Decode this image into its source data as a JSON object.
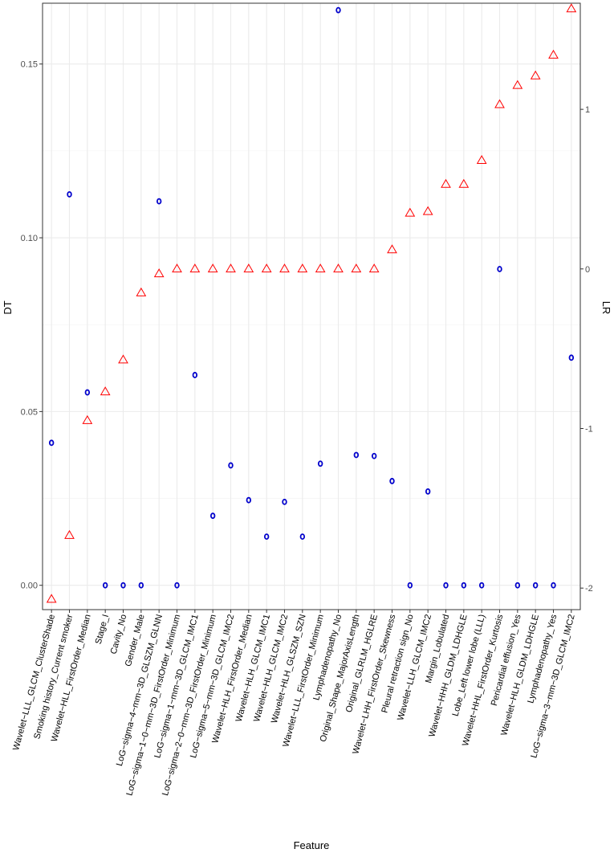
{
  "chart_data": {
    "type": "scatter",
    "xlabel": "Feature",
    "ylabel_left": "DT",
    "ylabel_right": "LR",
    "ylim_left": [
      -0.007,
      0.1675
    ],
    "ylim_right": [
      -2.135,
      1.665
    ],
    "left_ticks": [
      {
        "value": 0.0,
        "label": "0.00"
      },
      {
        "value": 0.05,
        "label": "0.05"
      },
      {
        "value": 0.1,
        "label": "0.10"
      },
      {
        "value": 0.15,
        "label": "0.15"
      }
    ],
    "right_ticks": [
      {
        "value": -2,
        "label": "-2"
      },
      {
        "value": -1,
        "label": "-1"
      },
      {
        "value": 0,
        "label": "0"
      },
      {
        "value": 1,
        "label": "1"
      }
    ],
    "grid": true,
    "categories": [
      "Wavelet−LLL_GLCM_ClusterShade",
      "Smoking history_Current smoker",
      "Wavelet−HLL_FirstOrder_Median",
      "Stage_I",
      "Cavity_No",
      "Gender_Male",
      "LoG−sigma−4−mm−3D_GLSZM_GLNN",
      "LoG−sigma−1−0−mm−3D_FirstOrder_Minimum",
      "LoG−sigma−1−mm−3D_GLCM_IMC1",
      "LoG−sigma−2−0−mm−3D_FirstOrder_Minimum",
      "LoG−sigma−5−mm−3D_GLCM_IMC2",
      "Wavelet−HLH_FirstOrder_Median",
      "Wavelet−HLH_GLCM_IMC1",
      "Wavelet−HLH_GLCM_IMC2",
      "Wavelet−HLH_GLSZM_SZN",
      "Wavelet−LLL_FirstOrder_Minimum",
      "Lymphadenopathy_No",
      "Original_Shape_MajorAxisLength",
      "Original_GLRLM_HGLRE",
      "Wavelet−LHH_FirstOrder_Skewness",
      "Pleural retraction sign_No",
      "Wavelet−LLH_GLCM_IMC2",
      "Margin_Lobulated",
      "Wavelet−HHH_GLDM_LDHGLE",
      "Lobe_Left lower lobe (LLL)",
      "Wavelet−HHL_FirstOrder_Kurtosis",
      "Pericardial effusion_Yes",
      "Wavelet−HLH_GLDM_LDHGLE",
      "Lymphadenopathy_Yes",
      "LoG−sigma−3−mm−3D_GLCM_IMC2"
    ],
    "series": [
      {
        "name": "DT",
        "axis": "left",
        "marker": "circle",
        "color": "#0000cc",
        "values": [
          0.041,
          0.1125,
          0.0555,
          0.0,
          0.0,
          0.0,
          0.1105,
          0.0,
          0.0605,
          0.02,
          0.0345,
          0.0245,
          0.014,
          0.024,
          0.014,
          0.035,
          0.1655,
          0.0375,
          0.0372,
          0.03,
          0.0,
          0.027,
          0.0,
          0.0,
          0.0,
          0.091,
          0.0,
          0.0,
          0.0,
          0.0655
        ]
      },
      {
        "name": "LR",
        "axis": "right",
        "marker": "triangle",
        "color": "#ff0000",
        "values": [
          -2.07,
          -1.67,
          -0.95,
          -0.77,
          -0.57,
          -0.15,
          -0.03,
          0.0,
          0.0,
          0.0,
          0.0,
          0.0,
          0.0,
          0.0,
          0.0,
          0.0,
          0.0,
          0.0,
          0.0,
          0.12,
          0.35,
          0.36,
          0.53,
          0.53,
          0.68,
          1.03,
          1.15,
          1.21,
          1.34,
          1.63
        ]
      }
    ]
  }
}
